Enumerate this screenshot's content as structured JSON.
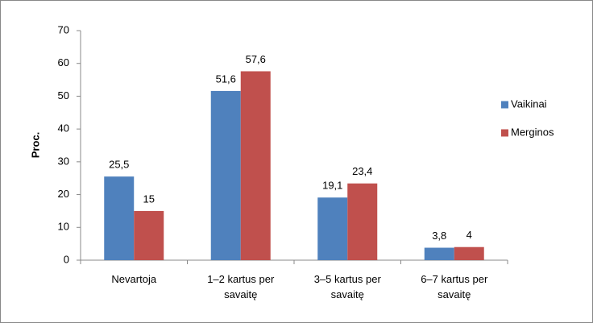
{
  "chart_data": {
    "type": "bar",
    "categories": [
      "Nevartoja",
      "1–2 kartus per savaitę",
      "3–5 kartus per savaitę",
      "6–7 kartus per savaitę"
    ],
    "series": [
      {
        "name": "Vaikinai",
        "color": "#4f81bd",
        "values": [
          25.5,
          51.6,
          19.1,
          3.8
        ],
        "value_labels": [
          "25,5",
          "51,6",
          "19,1",
          "3,8"
        ]
      },
      {
        "name": "Merginos",
        "color": "#c0504d",
        "values": [
          15,
          57.6,
          23.4,
          4
        ],
        "value_labels": [
          "15",
          "57,6",
          "23,4",
          "4"
        ]
      }
    ],
    "y_label": "Proc.",
    "ylim": [
      0,
      70
    ],
    "yticks": [
      0,
      10,
      20,
      30,
      40,
      50,
      60,
      70
    ],
    "grid": false,
    "legend": "right"
  }
}
